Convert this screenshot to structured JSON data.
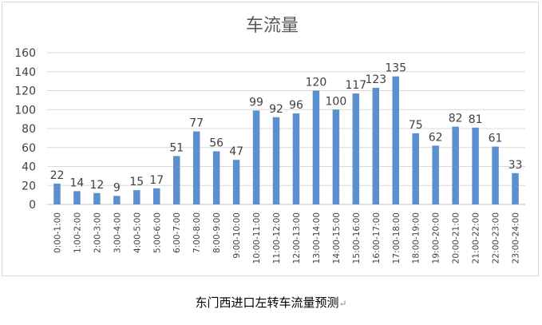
{
  "chart_data": {
    "type": "bar",
    "title": "车流量",
    "categories": [
      "0:00-1:00",
      "1:00-2:00",
      "2:00-3:00",
      "3:00-4:00",
      "4:00-5:00",
      "5:00-6:00",
      "6:00-7:00",
      "7:00-8:00",
      "8:00-9:00",
      "9:00-10:00",
      "10:00-11:00",
      "11:00-12:00",
      "12:00-13:00",
      "13:00-14:00",
      "14:00-15:00",
      "15:00-16:00",
      "16:00-17:00",
      "17:00-18:00",
      "18:00-19:00",
      "19:00-20:00",
      "20:00-21:00",
      "21:00-22:00",
      "22:00-23:00",
      "23:00-24:00"
    ],
    "values": [
      22,
      14,
      12,
      9,
      15,
      17,
      51,
      77,
      56,
      47,
      99,
      92,
      96,
      120,
      100,
      117,
      123,
      135,
      75,
      62,
      82,
      81,
      61,
      33
    ],
    "ylim": [
      0,
      160
    ],
    "yticks": [
      0,
      20,
      40,
      60,
      80,
      100,
      120,
      140,
      160
    ],
    "grid": true,
    "data_labels": true,
    "bar_color": "#5b8fd0"
  },
  "caption": "东门西进口左转车流量预测",
  "caption_mark": "↵"
}
